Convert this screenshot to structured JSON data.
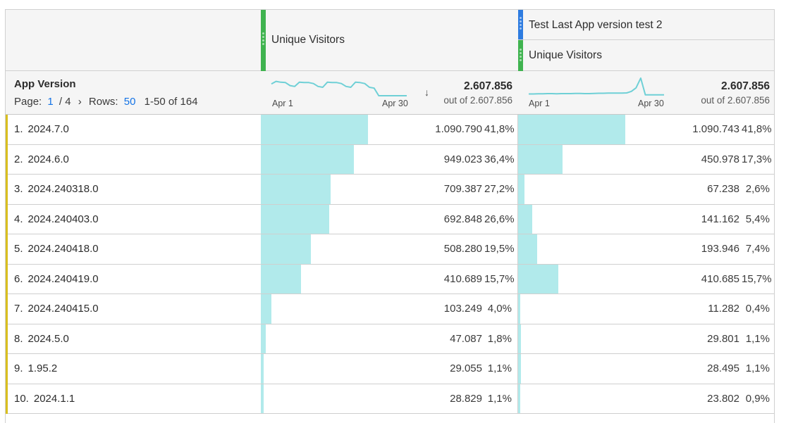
{
  "header": {
    "col1_metric": "Unique Visitors",
    "col2_segment": "Test Last App version test 2",
    "col2_metric": "Unique Visitors"
  },
  "colors": {
    "metric_stripe": "#3fb34f",
    "segment_stripe": "#2d7be0",
    "row_lead": "#d9bf1e",
    "bar": "#b1eaeb",
    "sparkline": "#6fd0d6",
    "link_blue": "#1473e6"
  },
  "dimension": {
    "title": "App Version",
    "page_label": "Page:",
    "page_current": "1",
    "page_sep": "/ 4",
    "next_icon": "chevron-right-icon",
    "next_glyph": "›",
    "rows_label": "Rows:",
    "rows_value": "50",
    "range": "1-50 of 164"
  },
  "summary": {
    "col1": {
      "spark_start": "Apr 1",
      "spark_end": "Apr 30",
      "sort_icon": "arrow-down-icon",
      "sort_glyph": "↓",
      "total": "2.607.856",
      "out_of": "out of 2.607.856",
      "trend": [
        0.7,
        0.85,
        0.8,
        0.78,
        0.6,
        0.55,
        0.8,
        0.78,
        0.78,
        0.72,
        0.55,
        0.5,
        0.8,
        0.78,
        0.78,
        0.72,
        0.55,
        0.5,
        0.8,
        0.78,
        0.72,
        0.5,
        0.45,
        0.0,
        0.0,
        0.0,
        0.0,
        0.0,
        0.0,
        0.0
      ]
    },
    "col2": {
      "spark_start": "Apr 1",
      "spark_end": "Apr 30",
      "total": "2.607.856",
      "out_of": "out of 2.607.856",
      "trend": [
        0.1,
        0.1,
        0.11,
        0.11,
        0.12,
        0.12,
        0.11,
        0.12,
        0.12,
        0.12,
        0.13,
        0.13,
        0.12,
        0.12,
        0.13,
        0.14,
        0.14,
        0.15,
        0.15,
        0.15,
        0.15,
        0.16,
        0.25,
        0.45,
        1.0,
        0.05,
        0.05,
        0.05,
        0.05,
        0.05
      ]
    }
  },
  "rows": [
    {
      "rank": "1.",
      "name": "2024.7.0",
      "c1": {
        "value": "1.090.790",
        "pct": "41,8%",
        "frac": 0.418
      },
      "c2": {
        "value": "1.090.743",
        "pct": "41,8%",
        "frac": 0.418
      }
    },
    {
      "rank": "2.",
      "name": "2024.6.0",
      "c1": {
        "value": "949.023",
        "pct": "36,4%",
        "frac": 0.364
      },
      "c2": {
        "value": "450.978",
        "pct": "17,3%",
        "frac": 0.173
      }
    },
    {
      "rank": "3.",
      "name": "2024.240318.0",
      "c1": {
        "value": "709.387",
        "pct": "27,2%",
        "frac": 0.272
      },
      "c2": {
        "value": "67.238",
        "pct": "2,6%",
        "frac": 0.026
      }
    },
    {
      "rank": "4.",
      "name": "2024.240403.0",
      "c1": {
        "value": "692.848",
        "pct": "26,6%",
        "frac": 0.266
      },
      "c2": {
        "value": "141.162",
        "pct": "5,4%",
        "frac": 0.054
      }
    },
    {
      "rank": "5.",
      "name": "2024.240418.0",
      "c1": {
        "value": "508.280",
        "pct": "19,5%",
        "frac": 0.195
      },
      "c2": {
        "value": "193.946",
        "pct": "7,4%",
        "frac": 0.074
      }
    },
    {
      "rank": "6.",
      "name": "2024.240419.0",
      "c1": {
        "value": "410.689",
        "pct": "15,7%",
        "frac": 0.157
      },
      "c2": {
        "value": "410.685",
        "pct": "15,7%",
        "frac": 0.157
      }
    },
    {
      "rank": "7.",
      "name": "2024.240415.0",
      "c1": {
        "value": "103.249",
        "pct": "4,0%",
        "frac": 0.04
      },
      "c2": {
        "value": "11.282",
        "pct": "0,4%",
        "frac": 0.004
      }
    },
    {
      "rank": "8.",
      "name": "2024.5.0",
      "c1": {
        "value": "47.087",
        "pct": "1,8%",
        "frac": 0.018
      },
      "c2": {
        "value": "29.801",
        "pct": "1,1%",
        "frac": 0.011
      }
    },
    {
      "rank": "9.",
      "name": "1.95.2",
      "c1": {
        "value": "29.055",
        "pct": "1,1%",
        "frac": 0.011
      },
      "c2": {
        "value": "28.495",
        "pct": "1,1%",
        "frac": 0.011
      }
    },
    {
      "rank": "10.",
      "name": "2024.1.1",
      "c1": {
        "value": "28.829",
        "pct": "1,1%",
        "frac": 0.011
      },
      "c2": {
        "value": "23.802",
        "pct": "0,9%",
        "frac": 0.009
      }
    }
  ]
}
